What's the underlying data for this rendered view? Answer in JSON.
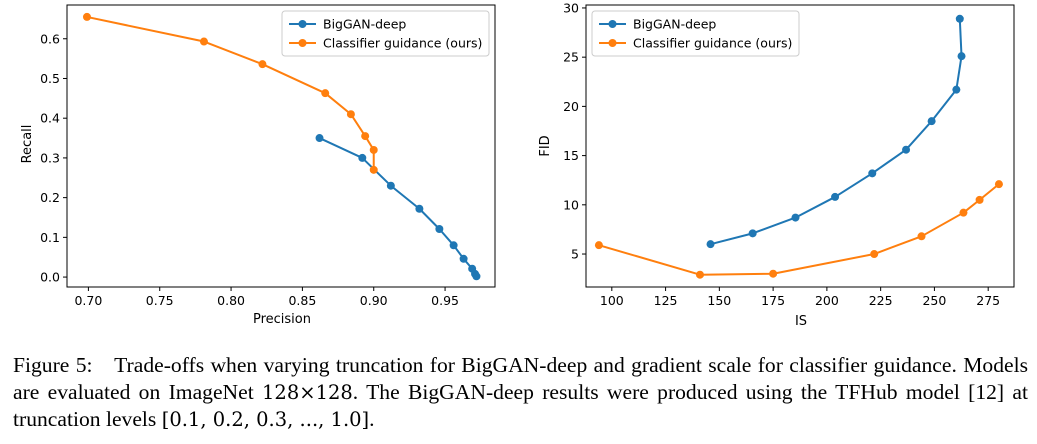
{
  "colors": {
    "biggan": "#1f77b4",
    "classifier": "#ff7f0e"
  },
  "chart_data": [
    {
      "type": "line",
      "title": "",
      "xlabel": "Precision",
      "ylabel": "Recall",
      "xlim": [
        0.685,
        0.985
      ],
      "ylim": [
        -0.025,
        0.685
      ],
      "xticks": [
        0.7,
        0.75,
        0.8,
        0.85,
        0.9,
        0.95
      ],
      "xtick_labels": [
        "0.70",
        "0.75",
        "0.80",
        "0.85",
        "0.90",
        "0.95"
      ],
      "yticks": [
        0.0,
        0.1,
        0.2,
        0.3,
        0.4,
        0.5,
        0.6
      ],
      "ytick_labels": [
        "0.0",
        "0.1",
        "0.2",
        "0.3",
        "0.4",
        "0.5",
        "0.6"
      ],
      "legend_position": "top-right",
      "series": [
        {
          "name": "BigGAN-deep",
          "color_key": "biggan",
          "x": [
            0.862,
            0.892,
            0.912,
            0.932,
            0.946,
            0.956,
            0.963,
            0.969,
            0.971,
            0.972
          ],
          "y": [
            0.35,
            0.3,
            0.23,
            0.172,
            0.121,
            0.08,
            0.046,
            0.021,
            0.008,
            0.002
          ]
        },
        {
          "name": "Classifier guidance (ours)",
          "color_key": "classifier",
          "x": [
            0.699,
            0.781,
            0.822,
            0.866,
            0.884,
            0.894,
            0.9,
            0.9
          ],
          "y": [
            0.655,
            0.593,
            0.536,
            0.463,
            0.41,
            0.355,
            0.32,
            0.27
          ]
        }
      ]
    },
    {
      "type": "line",
      "title": "",
      "xlabel": "IS",
      "ylabel": "FID",
      "xlim": [
        88,
        287
      ],
      "ylim": [
        1.65,
        30.3
      ],
      "xticks": [
        100,
        125,
        150,
        175,
        200,
        225,
        250,
        275
      ],
      "xtick_labels": [
        "100",
        "125",
        "150",
        "175",
        "200",
        "225",
        "250",
        "275"
      ],
      "yticks": [
        5,
        10,
        15,
        20,
        25,
        30
      ],
      "ytick_labels": [
        "5",
        "10",
        "15",
        "20",
        "25",
        "30"
      ],
      "legend_position": "top-left",
      "series": [
        {
          "name": "BigGAN-deep",
          "color_key": "biggan",
          "x": [
            145.9,
            165.5,
            185.4,
            203.8,
            221.1,
            236.8,
            248.7,
            260.2,
            262.6,
            261.8
          ],
          "y": [
            6.0,
            7.1,
            8.7,
            10.8,
            13.2,
            15.6,
            18.5,
            21.7,
            25.1,
            28.9
          ]
        },
        {
          "name": "Classifier guidance (ours)",
          "color_key": "classifier",
          "x": [
            94.0,
            141.0,
            175.0,
            222.0,
            244.0,
            263.5,
            271.0,
            280.0
          ],
          "y": [
            5.9,
            2.9,
            3.0,
            5.0,
            6.8,
            9.2,
            10.5,
            12.1
          ]
        }
      ]
    }
  ],
  "caption": {
    "label": "Figure 5:",
    "text_before": "Trade-offs when varying truncation for BigGAN-deep and gradient scale for classifier guidance. Models are evaluated on ImageNet ",
    "resolution": "128×128",
    "text_middle": ". The BigGAN-deep results were produced using the TFHub model [12] at truncation levels ",
    "levels": "[0.1, 0.2, 0.3, ..., 1.0]",
    "text_after": "."
  }
}
